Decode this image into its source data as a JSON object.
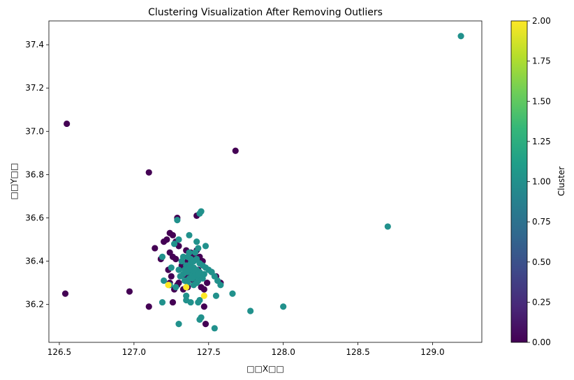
{
  "chart_data": {
    "type": "scatter",
    "title": "Clustering Visualization After Removing Outliers",
    "xlabel": "□□X□□",
    "ylabel": "□□Y□□",
    "xlim": [
      126.43,
      129.33
    ],
    "ylim": [
      36.025,
      37.51
    ],
    "x_ticks": [
      "126.5",
      "127.0",
      "127.5",
      "128.0",
      "128.5",
      "129.0"
    ],
    "y_ticks": [
      "36.2",
      "36.4",
      "36.6",
      "36.8",
      "37.0",
      "37.2",
      "37.4"
    ],
    "grid": false,
    "colormap": "viridis",
    "colorbar": {
      "label": "Cluster",
      "range": [
        0.0,
        2.0
      ],
      "ticks": [
        "0.00",
        "0.25",
        "0.50",
        "0.75",
        "1.00",
        "1.25",
        "1.50",
        "1.75",
        "2.00"
      ],
      "colors": [
        "#440154",
        "#482878",
        "#3e4989",
        "#31688e",
        "#26828e",
        "#1f9e89",
        "#35b779",
        "#6ece58",
        "#b5de2b",
        "#fde725"
      ]
    },
    "cluster_colors": {
      "0": "#440154",
      "1": "#21918c",
      "2": "#fde725"
    },
    "series": [
      {
        "cluster": 0,
        "points": [
          [
            126.55,
            37.035
          ],
          [
            127.1,
            36.81
          ],
          [
            127.68,
            36.91
          ],
          [
            126.54,
            36.25
          ],
          [
            126.97,
            36.26
          ],
          [
            127.1,
            36.19
          ],
          [
            127.42,
            36.61
          ],
          [
            127.29,
            36.6
          ],
          [
            127.48,
            36.11
          ],
          [
            127.47,
            36.19
          ],
          [
            127.26,
            36.21
          ],
          [
            127.24,
            36.53
          ],
          [
            127.2,
            36.49
          ],
          [
            127.22,
            36.5
          ],
          [
            127.26,
            36.52
          ],
          [
            127.28,
            36.49
          ],
          [
            127.3,
            36.47
          ],
          [
            127.14,
            36.46
          ],
          [
            127.18,
            36.41
          ],
          [
            127.24,
            36.44
          ],
          [
            127.26,
            36.42
          ],
          [
            127.28,
            36.41
          ],
          [
            127.23,
            36.36
          ],
          [
            127.24,
            36.3
          ],
          [
            127.27,
            36.27
          ],
          [
            127.25,
            36.33
          ],
          [
            127.3,
            36.3
          ],
          [
            127.32,
            36.38
          ],
          [
            127.35,
            36.45
          ],
          [
            127.38,
            36.44
          ],
          [
            127.42,
            36.45
          ],
          [
            127.4,
            36.43
          ],
          [
            127.44,
            36.42
          ],
          [
            127.46,
            36.4
          ],
          [
            127.47,
            36.27
          ],
          [
            127.49,
            36.3
          ],
          [
            127.45,
            36.28
          ],
          [
            127.36,
            36.28
          ],
          [
            127.33,
            36.27
          ],
          [
            127.29,
            36.29
          ],
          [
            127.58,
            36.3
          ],
          [
            127.55,
            36.33
          ],
          [
            127.52,
            36.35
          ],
          [
            127.36,
            36.4
          ],
          [
            127.38,
            36.37
          ],
          [
            127.4,
            36.31
          ],
          [
            127.43,
            36.36
          ],
          [
            127.35,
            36.33
          ]
        ]
      },
      {
        "cluster": 1,
        "points": [
          [
            129.19,
            37.44
          ],
          [
            128.7,
            36.56
          ],
          [
            128.0,
            36.19
          ],
          [
            127.78,
            36.17
          ],
          [
            127.54,
            36.09
          ],
          [
            127.3,
            36.11
          ],
          [
            127.44,
            36.13
          ],
          [
            127.45,
            36.14
          ],
          [
            127.43,
            36.21
          ],
          [
            127.44,
            36.22
          ],
          [
            127.38,
            36.21
          ],
          [
            127.35,
            36.22
          ],
          [
            127.19,
            36.21
          ],
          [
            127.35,
            36.24
          ],
          [
            127.66,
            36.25
          ],
          [
            127.55,
            36.24
          ],
          [
            127.45,
            36.63
          ],
          [
            127.44,
            36.62
          ],
          [
            127.37,
            36.52
          ],
          [
            127.29,
            36.59
          ],
          [
            127.3,
            36.5
          ],
          [
            127.42,
            36.49
          ],
          [
            127.48,
            36.47
          ],
          [
            127.27,
            36.48
          ],
          [
            127.19,
            36.42
          ],
          [
            127.25,
            36.37
          ],
          [
            127.24,
            36.29
          ],
          [
            127.28,
            36.28
          ],
          [
            127.2,
            36.31
          ],
          [
            127.58,
            36.29
          ],
          [
            127.56,
            36.31
          ],
          [
            127.54,
            36.33
          ],
          [
            127.52,
            36.35
          ],
          [
            127.5,
            36.36
          ],
          [
            127.48,
            36.37
          ],
          [
            127.46,
            36.38
          ],
          [
            127.3,
            36.36
          ],
          [
            127.32,
            36.4
          ],
          [
            127.33,
            36.34
          ],
          [
            127.34,
            36.31
          ],
          [
            127.35,
            36.38
          ],
          [
            127.36,
            36.35
          ],
          [
            127.37,
            36.32
          ],
          [
            127.38,
            36.39
          ],
          [
            127.39,
            36.34
          ],
          [
            127.4,
            36.37
          ],
          [
            127.41,
            36.33
          ],
          [
            127.42,
            36.36
          ],
          [
            127.43,
            36.31
          ],
          [
            127.44,
            36.35
          ],
          [
            127.45,
            36.33
          ],
          [
            127.36,
            36.42
          ],
          [
            127.38,
            36.41
          ],
          [
            127.4,
            36.4
          ],
          [
            127.42,
            36.41
          ],
          [
            127.44,
            36.39
          ],
          [
            127.34,
            36.36
          ],
          [
            127.36,
            36.3
          ],
          [
            127.4,
            36.29
          ],
          [
            127.42,
            36.3
          ],
          [
            127.46,
            36.32
          ],
          [
            127.47,
            36.34
          ],
          [
            127.31,
            36.33
          ],
          [
            127.33,
            36.42
          ],
          [
            127.37,
            36.44
          ],
          [
            127.41,
            36.44
          ],
          [
            127.43,
            36.46
          ],
          [
            127.39,
            36.36
          ],
          [
            127.41,
            36.35
          ],
          [
            127.37,
            36.37
          ],
          [
            127.35,
            36.35
          ],
          [
            127.39,
            36.32
          ],
          [
            127.43,
            36.34
          ]
        ]
      },
      {
        "cluster": 2,
        "points": [
          [
            127.23,
            36.29
          ],
          [
            127.35,
            36.28
          ],
          [
            127.47,
            36.24
          ]
        ]
      }
    ]
  }
}
